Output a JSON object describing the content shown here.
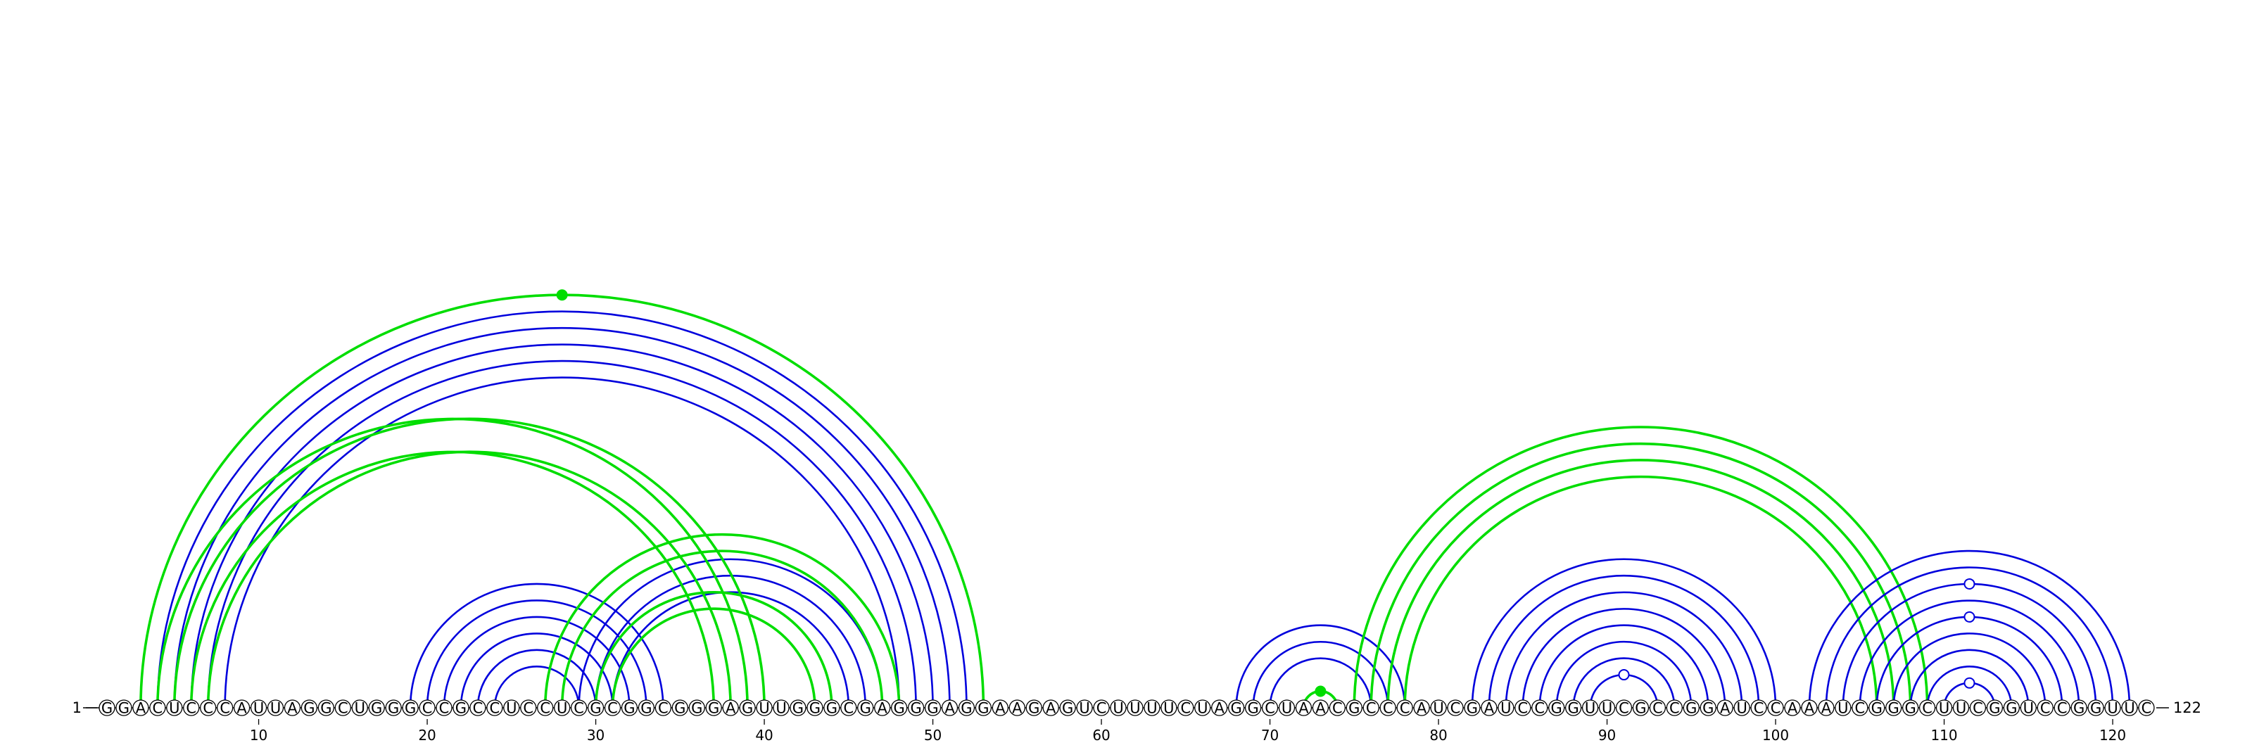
{
  "sequence": "GGACUCCCAUUAGGCUGGGCCGCCUCCUCGCGGCGGGAGUUGGGCGAGGGAGGAAGAGUCUUUUCUAGGCUAACGCCCAUCGAUCCGGUUCGCCGGAUCCAAAUCGGGCUUCGGUCCGGUUC",
  "left_end_label": "1",
  "right_end_label": "122",
  "ticks": [
    10,
    20,
    30,
    40,
    50,
    60,
    70,
    80,
    90,
    100,
    110,
    120
  ],
  "colors": {
    "blue": "#0000dd",
    "green": "#00dd00",
    "axis": "#000000"
  },
  "arcs": [
    {
      "i": 8,
      "j": 48,
      "color": "blue"
    },
    {
      "i": 7,
      "j": 49,
      "color": "blue"
    },
    {
      "i": 6,
      "j": 50,
      "color": "blue"
    },
    {
      "i": 5,
      "j": 51,
      "color": "blue"
    },
    {
      "i": 4,
      "j": 52,
      "color": "blue"
    },
    {
      "i": 3,
      "j": 53,
      "color": "green"
    },
    {
      "i": 19,
      "j": 34,
      "color": "blue"
    },
    {
      "i": 20,
      "j": 33,
      "color": "blue"
    },
    {
      "i": 21,
      "j": 32,
      "color": "blue"
    },
    {
      "i": 22,
      "j": 31,
      "color": "blue"
    },
    {
      "i": 23,
      "j": 30,
      "color": "blue"
    },
    {
      "i": 24,
      "j": 29,
      "color": "blue"
    },
    {
      "i": 29,
      "j": 47,
      "color": "blue"
    },
    {
      "i": 30,
      "j": 46,
      "color": "blue"
    },
    {
      "i": 31,
      "j": 45,
      "color": "blue"
    },
    {
      "i": 6,
      "j": 37,
      "color": "green"
    },
    {
      "i": 7,
      "j": 38,
      "color": "green"
    },
    {
      "i": 5,
      "j": 40,
      "color": "green"
    },
    {
      "i": 4,
      "j": 39,
      "color": "green"
    },
    {
      "i": 27,
      "j": 48,
      "color": "green"
    },
    {
      "i": 28,
      "j": 47,
      "color": "green"
    },
    {
      "i": 30,
      "j": 44,
      "color": "green"
    },
    {
      "i": 31,
      "j": 43,
      "color": "green"
    },
    {
      "i": 68,
      "j": 78,
      "color": "blue"
    },
    {
      "i": 69,
      "j": 77,
      "color": "blue"
    },
    {
      "i": 70,
      "j": 76,
      "color": "blue"
    },
    {
      "i": 72,
      "j": 74,
      "color": "green"
    },
    {
      "i": 75,
      "j": 109,
      "color": "green"
    },
    {
      "i": 76,
      "j": 108,
      "color": "green"
    },
    {
      "i": 77,
      "j": 107,
      "color": "green"
    },
    {
      "i": 78,
      "j": 106,
      "color": "green"
    },
    {
      "i": 82,
      "j": 100,
      "color": "blue"
    },
    {
      "i": 83,
      "j": 99,
      "color": "blue"
    },
    {
      "i": 84,
      "j": 98,
      "color": "blue"
    },
    {
      "i": 85,
      "j": 97,
      "color": "blue"
    },
    {
      "i": 86,
      "j": 96,
      "color": "blue"
    },
    {
      "i": 87,
      "j": 95,
      "color": "blue"
    },
    {
      "i": 88,
      "j": 94,
      "color": "blue"
    },
    {
      "i": 89,
      "j": 93,
      "color": "blue"
    },
    {
      "i": 102,
      "j": 121,
      "color": "blue"
    },
    {
      "i": 103,
      "j": 120,
      "color": "blue"
    },
    {
      "i": 104,
      "j": 119,
      "color": "blue"
    },
    {
      "i": 105,
      "j": 118,
      "color": "blue"
    },
    {
      "i": 106,
      "j": 117,
      "color": "blue"
    },
    {
      "i": 107,
      "j": 116,
      "color": "blue"
    },
    {
      "i": 108,
      "j": 115,
      "color": "blue"
    },
    {
      "i": 109,
      "j": 114,
      "color": "blue"
    },
    {
      "i": 110,
      "j": 113,
      "color": "blue"
    }
  ],
  "markers": [
    {
      "i": 3,
      "j": 53,
      "fill": "green"
    },
    {
      "i": 72,
      "j": 74,
      "fill": "green"
    },
    {
      "i": 89,
      "j": 93,
      "fill": "white"
    },
    {
      "i": 110,
      "j": 113,
      "fill": "white"
    },
    {
      "i": 106,
      "j": 117,
      "fill": "white"
    },
    {
      "i": 104,
      "j": 119,
      "fill": "white"
    }
  ]
}
